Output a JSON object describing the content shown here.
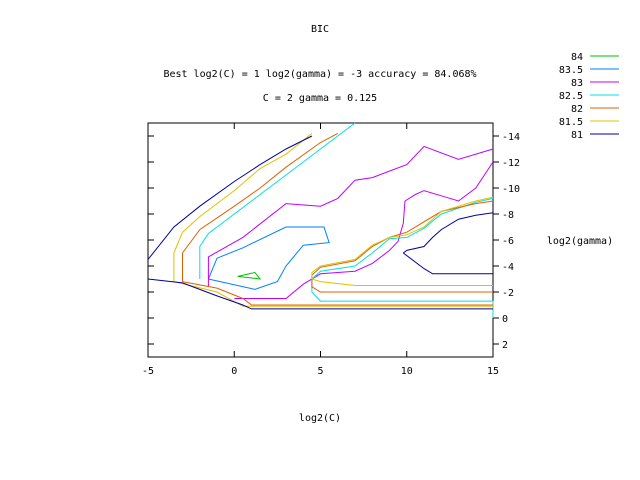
{
  "chart_data": {
    "type": "line",
    "title": "BIC",
    "subtitle_1": "Best log2(C) = 1  log2(gamma) = -3  accuracy = 84.068%",
    "subtitle_2": "C = 2  gamma = 0.125",
    "xlabel": "log2(C)",
    "ylabel": "log2(gamma)",
    "xlim": [
      -5,
      15
    ],
    "ylim": [
      3,
      -15
    ],
    "x_ticks": [
      -5,
      0,
      5,
      10,
      15
    ],
    "y_ticks": [
      2,
      0,
      -2,
      -4,
      -6,
      -8,
      -10,
      -12,
      -14
    ],
    "legend_position": "top-right, outside plot",
    "series": [
      {
        "name": "84",
        "color": "#00c000",
        "paths": [
          [
            [
              0.2,
              -3.2
            ],
            [
              1.2,
              -3.5
            ],
            [
              1.5,
              -3.0
            ],
            [
              0.2,
              -3.2
            ]
          ]
        ]
      },
      {
        "name": "83.5",
        "color": "#0080ff",
        "paths": [
          [
            [
              -1.5,
              -3.0
            ],
            [
              -1.0,
              -4.6
            ],
            [
              0.5,
              -5.4
            ],
            [
              3.0,
              -7.0
            ],
            [
              5.2,
              -7.0
            ],
            [
              5.5,
              -5.8
            ],
            [
              4.0,
              -5.6
            ],
            [
              3.0,
              -4.0
            ],
            [
              2.5,
              -2.8
            ],
            [
              1.2,
              -2.2
            ],
            [
              -1.5,
              -3.0
            ]
          ]
        ]
      },
      {
        "name": "83",
        "color": "#c000ff",
        "paths": [
          [
            [
              -1.5,
              -2.4
            ],
            [
              -1.5,
              -4.7
            ],
            [
              0.5,
              -6.2
            ],
            [
              3.0,
              -8.8
            ],
            [
              5.0,
              -8.6
            ],
            [
              6.0,
              -9.2
            ],
            [
              7.0,
              -10.6
            ],
            [
              8.0,
              -10.8
            ],
            [
              10.0,
              -11.8
            ],
            [
              11.0,
              -13.2
            ],
            [
              13.0,
              -12.2
            ],
            [
              15.0,
              -13.0
            ]
          ],
          [
            [
              0.0,
              -1.5
            ],
            [
              3.0,
              -1.5
            ],
            [
              4.0,
              -2.6
            ],
            [
              5.0,
              -3.4
            ],
            [
              7.0,
              -3.6
            ],
            [
              8.0,
              -4.2
            ],
            [
              9.0,
              -5.2
            ],
            [
              9.5,
              -5.9
            ],
            [
              9.8,
              -7.3
            ],
            [
              9.9,
              -9.0
            ],
            [
              10.5,
              -9.5
            ],
            [
              11.0,
              -9.8
            ],
            [
              12.0,
              -9.4
            ],
            [
              13.0,
              -9.0
            ],
            [
              14.0,
              -10.0
            ],
            [
              15.0,
              -12.0
            ]
          ]
        ]
      },
      {
        "name": "82.5",
        "color": "#00e0e0",
        "paths": [
          [
            [
              -2.0,
              -3.0
            ],
            [
              -2.0,
              -5.5
            ],
            [
              -1.5,
              -6.5
            ],
            [
              0.0,
              -8.0
            ],
            [
              1.5,
              -9.5
            ],
            [
              3.0,
              -11.0
            ],
            [
              5.0,
              -13.0
            ],
            [
              7.0,
              -15.0
            ]
          ],
          [
            [
              15.0,
              0.0
            ],
            [
              15.0,
              -1.3
            ],
            [
              5.0,
              -1.3
            ],
            [
              4.5,
              -2.0
            ],
            [
              4.5,
              -3.0
            ],
            [
              5.0,
              -3.6
            ],
            [
              7.0,
              -4.0
            ],
            [
              8.0,
              -5.0
            ],
            [
              9.0,
              -6.1
            ],
            [
              10.0,
              -6.2
            ],
            [
              11.0,
              -6.9
            ],
            [
              12.0,
              -8.0
            ],
            [
              14.0,
              -8.9
            ],
            [
              15.0,
              -9.2
            ]
          ]
        ]
      },
      {
        "name": "82",
        "color": "#e06000",
        "paths": [
          [
            [
              -3.0,
              -2.8
            ],
            [
              -3.0,
              -5.0
            ],
            [
              -2.0,
              -6.8
            ],
            [
              0.0,
              -8.6
            ],
            [
              1.5,
              -10.0
            ],
            [
              3.0,
              -11.6
            ],
            [
              5.0,
              -13.5
            ],
            [
              6.0,
              -14.2
            ]
          ],
          [
            [
              15.0,
              -1.0
            ],
            [
              1.0,
              -1.0
            ],
            [
              0.5,
              -1.5
            ],
            [
              -1.0,
              -2.3
            ],
            [
              -3.0,
              -2.8
            ]
          ],
          [
            [
              15.0,
              -2.0
            ],
            [
              5.0,
              -2.0
            ],
            [
              4.5,
              -2.4
            ],
            [
              4.5,
              -3.3
            ],
            [
              5.0,
              -3.9
            ],
            [
              7.0,
              -4.4
            ],
            [
              8.0,
              -5.5
            ],
            [
              9.0,
              -6.2
            ],
            [
              10.0,
              -6.6
            ],
            [
              12.0,
              -8.2
            ],
            [
              14.0,
              -8.8
            ],
            [
              15.0,
              -9.0
            ]
          ]
        ]
      },
      {
        "name": "81.5",
        "color": "#e0c000",
        "paths": [
          [
            [
              -3.5,
              -2.8
            ],
            [
              -3.5,
              -5.0
            ],
            [
              -3.0,
              -6.6
            ],
            [
              -2.0,
              -7.8
            ],
            [
              0.0,
              -9.8
            ],
            [
              1.5,
              -11.5
            ],
            [
              3.0,
              -12.6
            ],
            [
              4.5,
              -14.2
            ]
          ],
          [
            [
              15.0,
              -0.9
            ],
            [
              0.5,
              -0.9
            ],
            [
              -1.0,
              -2.0
            ],
            [
              -3.5,
              -2.8
            ]
          ],
          [
            [
              15.0,
              -2.5
            ],
            [
              7.0,
              -2.5
            ],
            [
              5.0,
              -2.8
            ],
            [
              4.5,
              -3.0
            ],
            [
              4.5,
              -3.5
            ],
            [
              5.0,
              -4.0
            ],
            [
              7.0,
              -4.5
            ],
            [
              8.0,
              -5.6
            ],
            [
              9.0,
              -6.2
            ],
            [
              10.0,
              -6.4
            ],
            [
              11.0,
              -7.0
            ],
            [
              12.0,
              -8.2
            ],
            [
              14.0,
              -9.0
            ],
            [
              15.0,
              -9.3
            ]
          ]
        ]
      },
      {
        "name": "81",
        "color": "#0000a0",
        "paths": [
          [
            [
              -5.0,
              -4.5
            ],
            [
              -3.5,
              -7.0
            ],
            [
              -2.0,
              -8.6
            ],
            [
              0.0,
              -10.5
            ],
            [
              1.5,
              -11.8
            ],
            [
              3.0,
              -13.0
            ],
            [
              4.5,
              -14.0
            ]
          ],
          [
            [
              -5.0,
              -3.0
            ],
            [
              -3.0,
              -2.7
            ],
            [
              -1.0,
              -1.7
            ],
            [
              0.5,
              -1.0
            ],
            [
              1.0,
              -0.7
            ],
            [
              15.0,
              -0.7
            ]
          ],
          [
            [
              9.8,
              -5.0
            ],
            [
              11.0,
              -3.8
            ],
            [
              11.5,
              -3.4
            ],
            [
              15.0,
              -3.4
            ]
          ],
          [
            [
              9.8,
              -5.0
            ],
            [
              10.0,
              -5.2
            ],
            [
              11.0,
              -5.5
            ],
            [
              11.5,
              -6.2
            ],
            [
              12.0,
              -6.8
            ],
            [
              13.0,
              -7.6
            ],
            [
              14.0,
              -7.9
            ],
            [
              15.0,
              -8.1
            ]
          ]
        ]
      }
    ]
  }
}
